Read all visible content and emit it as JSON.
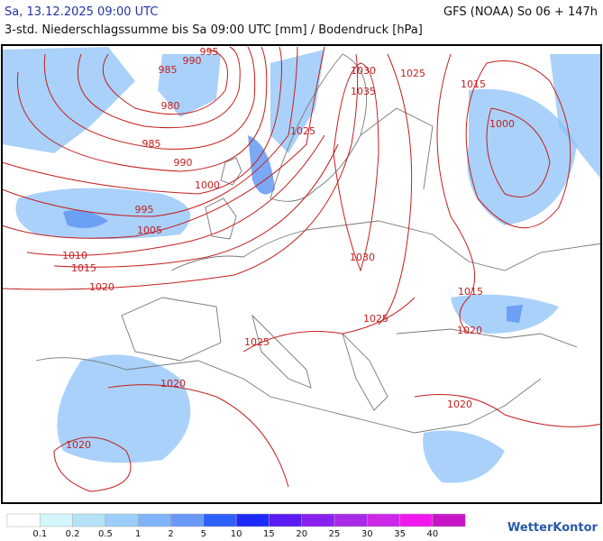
{
  "header": {
    "datetime": "Sa, 13.12.2025 09:00 UTC",
    "model_run": "GFS (NOAA) So 06 + 147h",
    "subtitle": "3-std. Niederschlagssumme bis Sa 09:00 UTC [mm] / Bodendruck [hPa]"
  },
  "isobar_labels": [
    995,
    990,
    985,
    980,
    985,
    990,
    1000,
    995,
    1005,
    1010,
    1015,
    1020,
    1030,
    1035,
    1025,
    1025,
    1015,
    1000,
    1030,
    1015,
    1020,
    1025,
    1025,
    1020,
    1020,
    1020
  ],
  "isobar_color": "#c41e1e",
  "legend": {
    "labels": [
      0.1,
      0.2,
      0.5,
      1,
      2,
      5,
      10,
      15,
      20,
      25,
      30,
      35,
      40
    ],
    "colors": [
      "#ffffff",
      "#d2f6fb",
      "#b6e2f8",
      "#9dcdf9",
      "#80b4fa",
      "#6a98f7",
      "#2e5ff6",
      "#1c2afb",
      "#5a1cf3",
      "#8a20ee",
      "#a82ae6",
      "#cc28e8",
      "#f018ef",
      "#c614c6"
    ]
  },
  "logo": "WetterKontor"
}
